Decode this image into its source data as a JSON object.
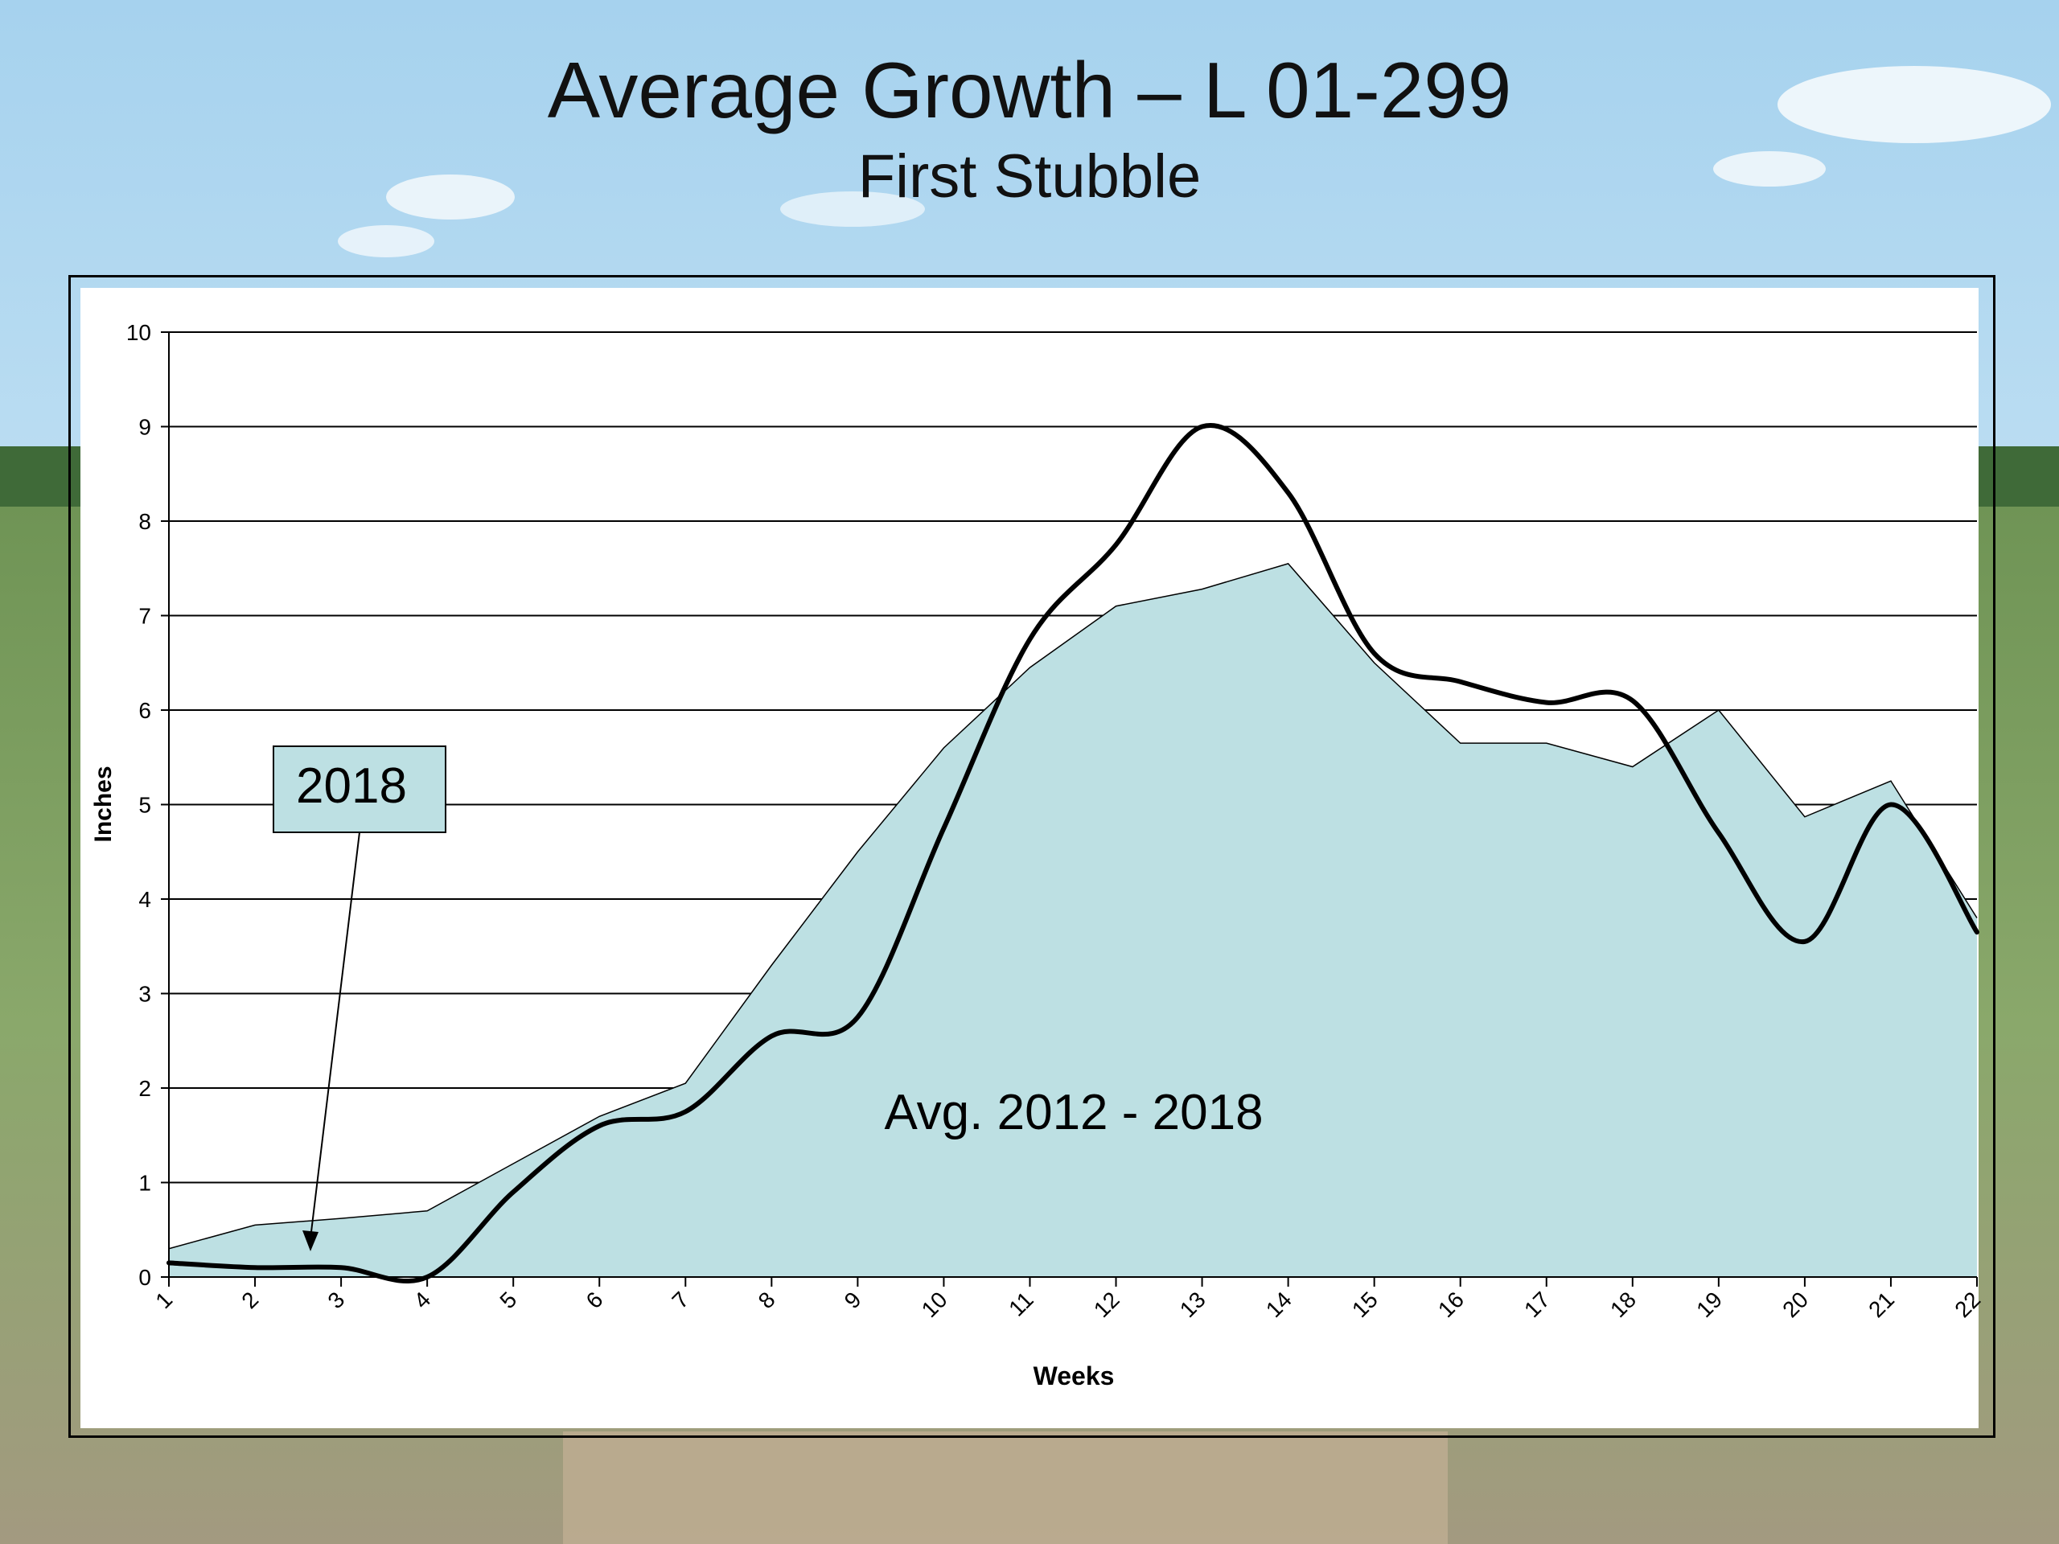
{
  "slide": {
    "title": "Average Growth – L 01-299",
    "subtitle": "First Stubble"
  },
  "colors": {
    "sky_top": "#a9d4ef",
    "sky_bottom": "#e6f3fa",
    "field": "#7fa160",
    "area_fill": "#bde0e3",
    "line": "#000000",
    "plot_bg": "#ffffff"
  },
  "chart_data": {
    "type": "area",
    "title": "",
    "xlabel": "Weeks",
    "ylabel": "Inches",
    "x": [
      1,
      2,
      3,
      4,
      5,
      6,
      7,
      8,
      9,
      10,
      11,
      12,
      13,
      14,
      15,
      16,
      17,
      18,
      19,
      20,
      21,
      22
    ],
    "ylim": [
      0,
      10
    ],
    "yticks": [
      0,
      1,
      2,
      3,
      4,
      5,
      6,
      7,
      8,
      9,
      10
    ],
    "grid": "horizontal",
    "series": [
      {
        "name": "Avg. 2012 - 2018",
        "kind": "area",
        "values": [
          0.3,
          0.55,
          0.62,
          0.7,
          1.2,
          1.7,
          2.05,
          3.3,
          4.5,
          5.6,
          6.45,
          7.1,
          7.28,
          7.55,
          6.5,
          5.65,
          5.65,
          5.4,
          6.0,
          4.87,
          5.25,
          3.8
        ]
      },
      {
        "name": "2018",
        "kind": "line",
        "values": [
          0.15,
          0.1,
          0.1,
          0.0,
          0.9,
          1.6,
          1.75,
          2.55,
          2.75,
          4.75,
          6.75,
          7.75,
          9.0,
          8.3,
          6.6,
          6.3,
          6.08,
          6.1,
          4.7,
          3.55,
          5.0,
          3.65
        ]
      }
    ],
    "annotations": [
      {
        "text": "2018",
        "type": "callout-box",
        "points_to_week": 2.65,
        "points_to_value": 0.3
      },
      {
        "text": "Avg. 2012 - 2018",
        "type": "area-label",
        "at_week": 11.5,
        "at_value": 1.75
      }
    ]
  }
}
